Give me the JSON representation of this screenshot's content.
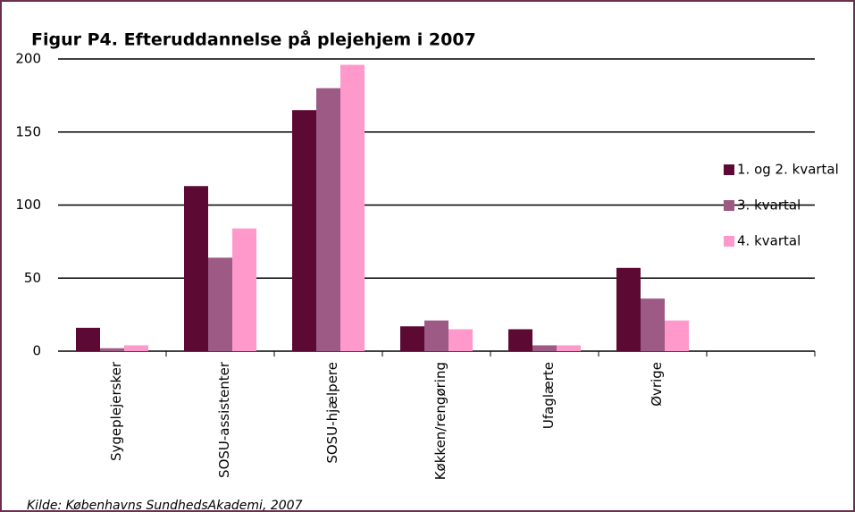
{
  "chart_data": {
    "type": "bar",
    "title": "Figur P4. Efteruddannelse på plejehjem i 2007",
    "source": "Kilde: Københavns SundhedsAkademi, 2007",
    "categories": [
      "Sygeplejersker",
      "SOSU-assistenter",
      "SOSU-hjælpere",
      "Køkken/rengøring",
      "Ufaglærte",
      "Øvrige",
      null
    ],
    "series": [
      {
        "name": "1. og 2. kvartal",
        "color": "#5c0a33",
        "values": [
          16,
          113,
          165,
          17,
          15,
          57,
          null
        ]
      },
      {
        "name": "3. kvartal",
        "color": "#9c5a85",
        "values": [
          2,
          64,
          180,
          21,
          4,
          36,
          null
        ]
      },
      {
        "name": "4. kvartal",
        "color": "#ff99cc",
        "values": [
          4,
          84,
          196,
          15,
          4,
          21,
          null
        ]
      }
    ],
    "ylim": [
      0,
      200
    ],
    "yticks": [
      0,
      50,
      100,
      150,
      200
    ],
    "grid": true,
    "legend": "right"
  }
}
